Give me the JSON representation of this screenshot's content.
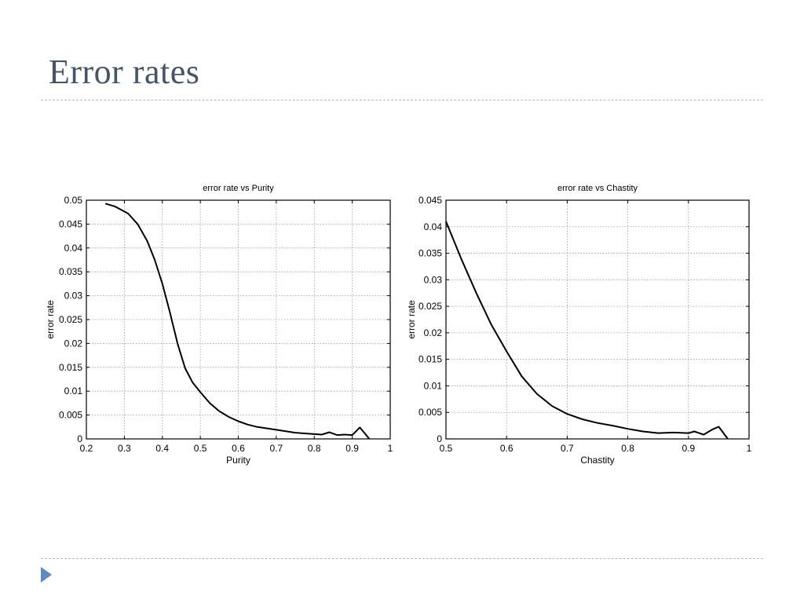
{
  "slide": {
    "title": "Error rates"
  },
  "colors": {
    "title": "#44546a",
    "divider": "#a9b8c8",
    "bullet": "#5b8bc1",
    "line": "#000000",
    "grid": "#9a9a9a"
  },
  "chart_data": [
    {
      "type": "line",
      "title": "error rate vs Purity",
      "xlabel": "Purity",
      "ylabel": "error rate",
      "xlim": [
        0.2,
        1
      ],
      "ylim": [
        0,
        0.05
      ],
      "xticks": [
        0.2,
        0.3,
        0.4,
        0.5,
        0.6,
        0.7,
        0.8,
        0.9,
        1
      ],
      "xtick_labels": [
        "0.2",
        "0.3",
        "0.4",
        "0.5",
        "0.6",
        "0.7",
        "0.8",
        "0.9",
        "1"
      ],
      "yticks": [
        0,
        0.005,
        0.01,
        0.015,
        0.02,
        0.025,
        0.03,
        0.035,
        0.04,
        0.045,
        0.05
      ],
      "ytick_labels": [
        "0",
        "0.005",
        "0.01",
        "0.015",
        "0.02",
        "0.025",
        "0.03",
        "0.035",
        "0.04",
        "0.045",
        "0.05"
      ],
      "grid": true,
      "series": [
        {
          "x": [
            0.25,
            0.275,
            0.31,
            0.335,
            0.36,
            0.38,
            0.4,
            0.42,
            0.44,
            0.46,
            0.48,
            0.5,
            0.525,
            0.55,
            0.575,
            0.6,
            0.625,
            0.65,
            0.7,
            0.75,
            0.8,
            0.82,
            0.84,
            0.86,
            0.88,
            0.9,
            0.92,
            0.945
          ],
          "y": [
            0.0493,
            0.0487,
            0.0472,
            0.045,
            0.0415,
            0.0375,
            0.0325,
            0.0265,
            0.02,
            0.0148,
            0.0118,
            0.0098,
            0.0075,
            0.0058,
            0.0046,
            0.0037,
            0.003,
            0.0025,
            0.0019,
            0.0013,
            0.001,
            0.0009,
            0.0014,
            0.0008,
            0.0009,
            0.0008,
            0.0024,
            0.0
          ]
        }
      ]
    },
    {
      "type": "line",
      "title": "error rate vs Chastity",
      "xlabel": "Chastity",
      "ylabel": "error rate",
      "xlim": [
        0.5,
        1
      ],
      "ylim": [
        0,
        0.045
      ],
      "xticks": [
        0.5,
        0.6,
        0.7,
        0.8,
        0.9,
        1
      ],
      "xtick_labels": [
        "0.5",
        "0.6",
        "0.7",
        "0.8",
        "0.9",
        "1"
      ],
      "yticks": [
        0,
        0.005,
        0.01,
        0.015,
        0.02,
        0.025,
        0.03,
        0.035,
        0.04,
        0.045
      ],
      "ytick_labels": [
        "0",
        "0.005",
        "0.01",
        "0.015",
        "0.02",
        "0.025",
        "0.03",
        "0.035",
        "0.04",
        "0.045"
      ],
      "grid": true,
      "series": [
        {
          "x": [
            0.5,
            0.525,
            0.55,
            0.575,
            0.6,
            0.625,
            0.65,
            0.675,
            0.7,
            0.725,
            0.75,
            0.775,
            0.8,
            0.825,
            0.85,
            0.875,
            0.9,
            0.91,
            0.925,
            0.94,
            0.95,
            0.965
          ],
          "y": [
            0.041,
            0.034,
            0.0275,
            0.0215,
            0.0165,
            0.0118,
            0.0085,
            0.0062,
            0.0047,
            0.0037,
            0.003,
            0.0025,
            0.0019,
            0.0014,
            0.0011,
            0.0012,
            0.0011,
            0.0014,
            0.0008,
            0.0018,
            0.0023,
            0.0
          ]
        }
      ]
    }
  ]
}
